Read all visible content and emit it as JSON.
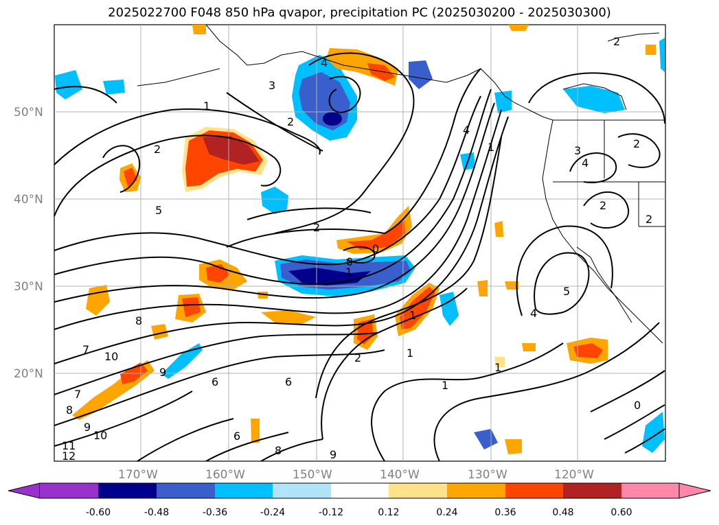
{
  "title": "2025022700 F048 850 hPa qvapor, precipitation PC (2025030200 - 2025030300)",
  "map": {
    "lat_labels": [
      "50°N",
      "40°N",
      "30°N",
      "20°N"
    ],
    "lon_labels": [
      "170°W",
      "160°W",
      "150°W",
      "140°W",
      "130°W",
      "120°W"
    ],
    "contour_labels": [
      "2",
      "4",
      "3",
      "2",
      "1",
      "2",
      "5",
      "2",
      "0",
      "0",
      "1",
      "8",
      "7",
      "10",
      "6",
      "9",
      "6",
      "7",
      "8",
      "9",
      "10",
      "11",
      "12",
      "8",
      "2",
      "1",
      "1",
      "4",
      "1",
      "5",
      "4",
      "3",
      "4",
      "2",
      "2",
      "2",
      "0",
      "1",
      "9",
      "6",
      "1"
    ]
  },
  "colorbar": {
    "ticks": [
      "-0.60",
      "-0.48",
      "-0.36",
      "-0.24",
      "-0.12",
      "0.12",
      "0.24",
      "0.36",
      "0.48",
      "0.60"
    ],
    "colors": [
      "#9932cc",
      "#00008b",
      "#3a5fcd",
      "#00bfff",
      "#afe4fa",
      "#ffffff",
      "#ffe28a",
      "#ffa500",
      "#ff4500",
      "#b22222",
      "#ff88aa"
    ]
  }
}
